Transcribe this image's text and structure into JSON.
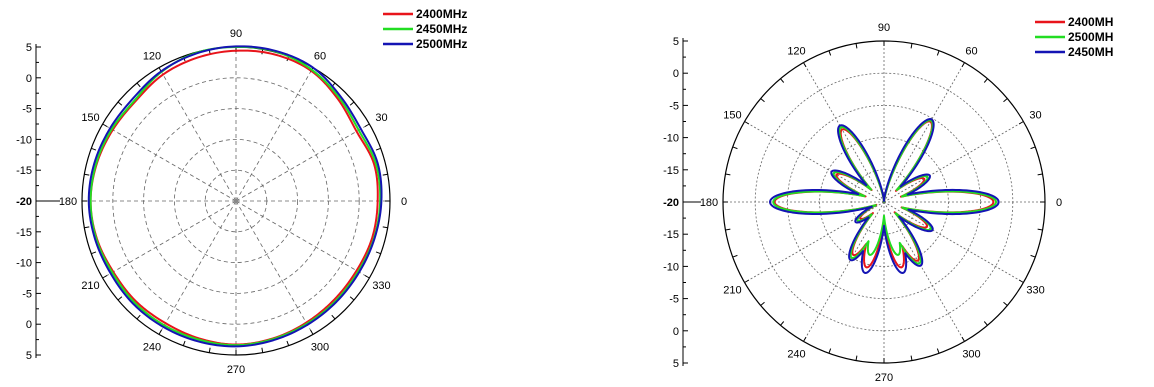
{
  "chart_data": [
    {
      "type": "polar-line",
      "title": "",
      "r_tick_labels": [
        "5",
        "0",
        "-5",
        "-10",
        "-15",
        "-20",
        "-15",
        "-10",
        "-5",
        "0",
        "5"
      ],
      "r_range": [
        -20,
        5
      ],
      "angle_ticks": [
        0,
        30,
        60,
        90,
        120,
        150,
        180,
        210,
        240,
        270,
        300,
        330
      ],
      "angle_tick_labels": [
        "0",
        "30",
        "60",
        "90",
        "120",
        "150",
        "180",
        "210",
        "240",
        "270",
        "300",
        "330"
      ],
      "legend_position": "top-right",
      "grid": true,
      "series": [
        {
          "name": "2400MHz",
          "color": "#e8141b",
          "angles": [
            0,
            15,
            30,
            45,
            60,
            75,
            90,
            105,
            120,
            135,
            150,
            165,
            180,
            195,
            210,
            225,
            240,
            255,
            270,
            285,
            300,
            315,
            330,
            345,
            360
          ],
          "values": [
            3.0,
            3.2,
            2.6,
            3.4,
            4.4,
            4.6,
            4.4,
            4.1,
            3.7,
            3.0,
            3.1,
            3.4,
            3.6,
            3.4,
            3.0,
            3.0,
            2.9,
            3.1,
            3.3,
            3.1,
            2.8,
            2.6,
            2.6,
            2.9,
            3.0
          ]
        },
        {
          "name": "2450MHz",
          "color": "#22dd22",
          "angles": [
            0,
            15,
            30,
            45,
            60,
            75,
            90,
            105,
            120,
            135,
            150,
            165,
            180,
            195,
            210,
            225,
            240,
            255,
            270,
            285,
            300,
            315,
            330,
            345,
            360
          ],
          "values": [
            3.4,
            3.5,
            3.0,
            3.7,
            4.6,
            5.1,
            5.0,
            4.9,
            4.2,
            3.2,
            3.3,
            3.5,
            3.6,
            3.5,
            3.2,
            3.3,
            3.3,
            3.3,
            3.4,
            3.2,
            3.0,
            2.9,
            2.9,
            3.2,
            3.4
          ]
        },
        {
          "name": "2500MHz",
          "color": "#1414b4",
          "angles": [
            0,
            15,
            30,
            45,
            60,
            75,
            90,
            105,
            120,
            135,
            150,
            165,
            180,
            195,
            210,
            225,
            240,
            255,
            270,
            285,
            300,
            315,
            330,
            345,
            360
          ],
          "values": [
            3.6,
            3.8,
            3.4,
            4.0,
            5.0,
            5.2,
            5.1,
            4.8,
            4.3,
            3.6,
            3.6,
            3.8,
            3.9,
            3.7,
            3.5,
            3.6,
            3.6,
            3.6,
            3.6,
            3.4,
            3.2,
            3.1,
            3.1,
            3.3,
            3.6
          ]
        }
      ]
    },
    {
      "type": "polar-line",
      "title": "",
      "r_tick_labels": [
        "5",
        "0",
        "-5",
        "-10",
        "-15",
        "-20",
        "-15",
        "-10",
        "-5",
        "0",
        "5"
      ],
      "r_range": [
        -20,
        5
      ],
      "angle_ticks": [
        0,
        30,
        60,
        90,
        120,
        150,
        180,
        210,
        240,
        270,
        300,
        330
      ],
      "angle_tick_labels": [
        "0",
        "30",
        "60",
        "90",
        "120",
        "150",
        "180",
        "210",
        "240",
        "270",
        "300",
        "330"
      ],
      "legend_position": "top-right",
      "grid": true,
      "series": [
        {
          "name": "2400MH",
          "color": "#e8141b",
          "lobes": [
            0,
            30,
            60,
            120,
            150,
            180,
            215,
            240,
            255,
            285,
            300,
            330
          ],
          "lobe_peaks": [
            -3.0,
            -12.8,
            -5.6,
            -7.0,
            -11.5,
            -3.0,
            -15.5,
            -10.5,
            -9.5,
            -9.5,
            -9.5,
            -12.3
          ],
          "lobe_width": 9
        },
        {
          "name": "2500MH",
          "color": "#22dd22",
          "lobes": [
            0,
            30,
            60,
            120,
            150,
            180,
            215,
            240,
            255,
            285,
            300,
            330
          ],
          "lobe_peaks": [
            -2.6,
            -12.2,
            -5.4,
            -6.6,
            -11.0,
            -2.8,
            -15.0,
            -10.0,
            -11.5,
            -11.5,
            -9.0,
            -11.6
          ],
          "lobe_width": 9
        },
        {
          "name": "2450MH",
          "color": "#1414b4",
          "lobes": [
            0,
            30,
            60,
            120,
            150,
            180,
            215,
            240,
            255,
            285,
            300,
            330
          ],
          "lobe_peaks": [
            -2.2,
            -11.8,
            -5.2,
            -6.3,
            -10.6,
            -2.3,
            -14.6,
            -9.6,
            -8.6,
            -8.6,
            -8.6,
            -11.3
          ],
          "lobe_width": 10
        }
      ]
    }
  ]
}
